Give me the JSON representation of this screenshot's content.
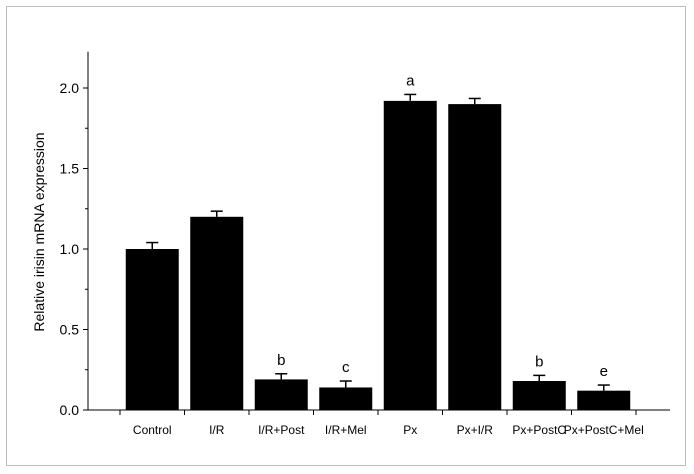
{
  "chart_data": {
    "type": "bar",
    "categories": [
      "Control",
      "I/R",
      "I/R+Post",
      "I/R+Mel",
      "Px",
      "Px+I/R",
      "Px+PostC",
      "Px+PostC+Mel"
    ],
    "values": [
      1.0,
      1.2,
      0.19,
      0.14,
      1.92,
      1.9,
      0.18,
      0.12
    ],
    "errors": [
      0.04,
      0.035,
      0.035,
      0.04,
      0.04,
      0.035,
      0.035,
      0.035
    ],
    "annotations": [
      "",
      "",
      "b",
      "c",
      "a",
      "",
      "b",
      "e"
    ],
    "ylabel": "Relative irisin mRNA expression",
    "xlabel": "",
    "ylim": [
      0,
      2.2
    ],
    "yticks": [
      "0.0",
      "0.5",
      "1.0",
      "1.5",
      "2.0"
    ],
    "ytick_values": [
      0,
      0.5,
      1.0,
      1.5,
      2.0
    ],
    "bar_color": "#000000",
    "grid": false,
    "legend": "none"
  }
}
